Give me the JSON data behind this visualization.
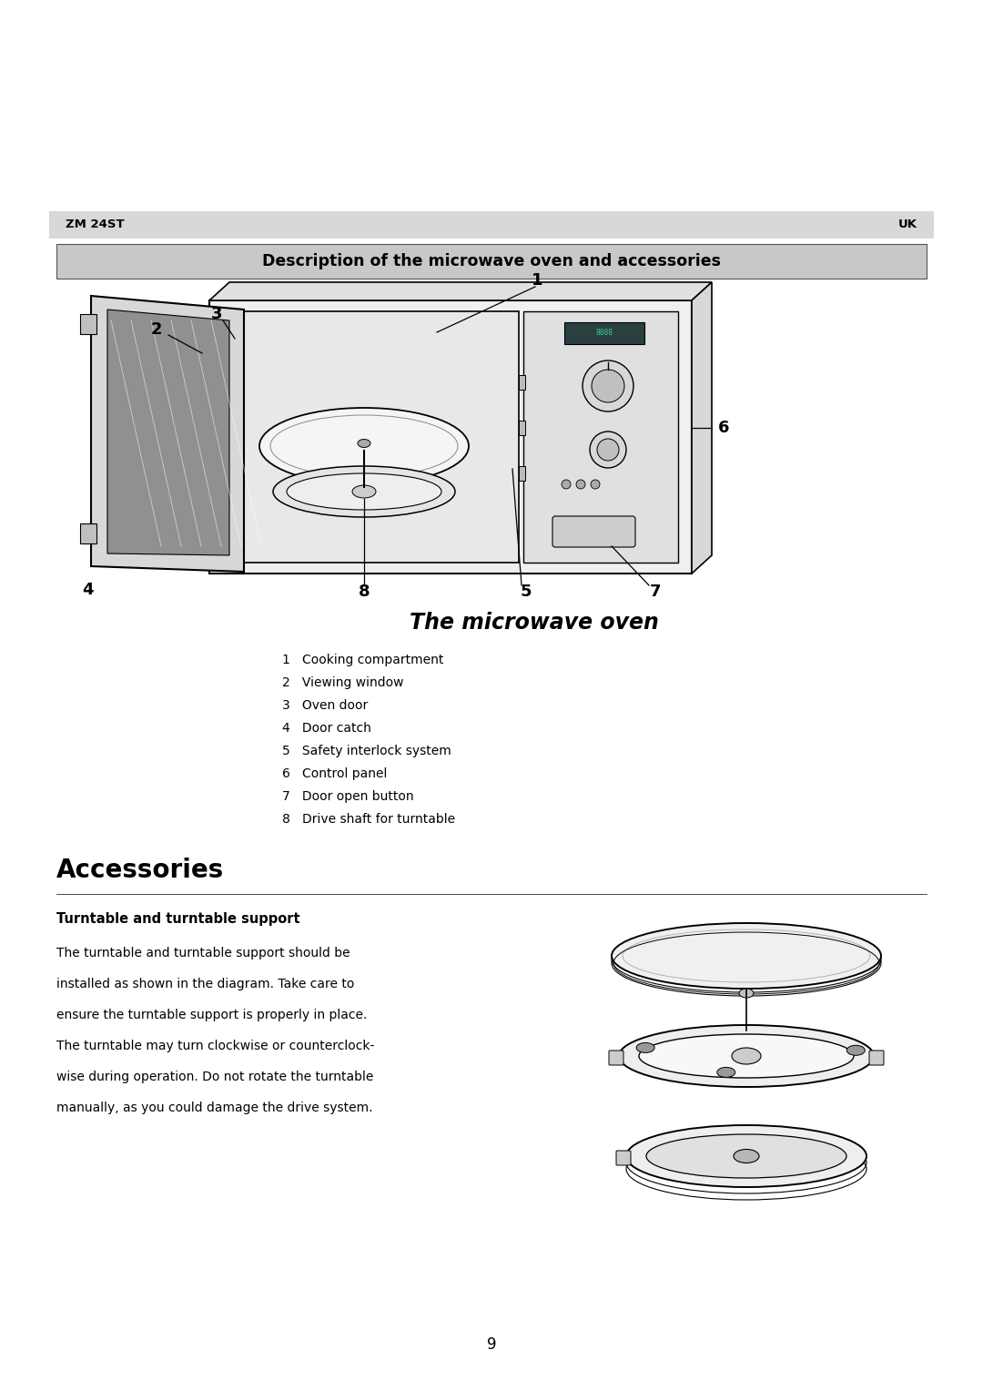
{
  "bg_color": "#ffffff",
  "header_bg": "#d8d8d8",
  "header_left": "ZM 24ST",
  "header_right": "UK",
  "section_box_bg": "#c8c8c8",
  "section_title": "Description of the microwave oven and accessories",
  "microwave_subtitle": "The microwave oven",
  "items": [
    "1   Cooking compartment",
    "2   Viewing window",
    "3   Oven door",
    "4   Door catch",
    "5   Safety interlock system",
    "6   Control panel",
    "7   Door open button",
    "8   Drive shaft for turntable"
  ],
  "accessories_title": "Accessories",
  "turntable_subtitle": "Turntable and turntable support",
  "turntable_lines": [
    "The turntable and turntable support should be",
    "installed as shown in the diagram. Take care to",
    "ensure the turntable support is properly in place.",
    "The turntable may turn clockwise or counterclock-",
    "wise during operation. Do not rotate the turntable",
    "manually, as you could damage the drive system."
  ],
  "page_number": "9",
  "text_color": "#000000"
}
